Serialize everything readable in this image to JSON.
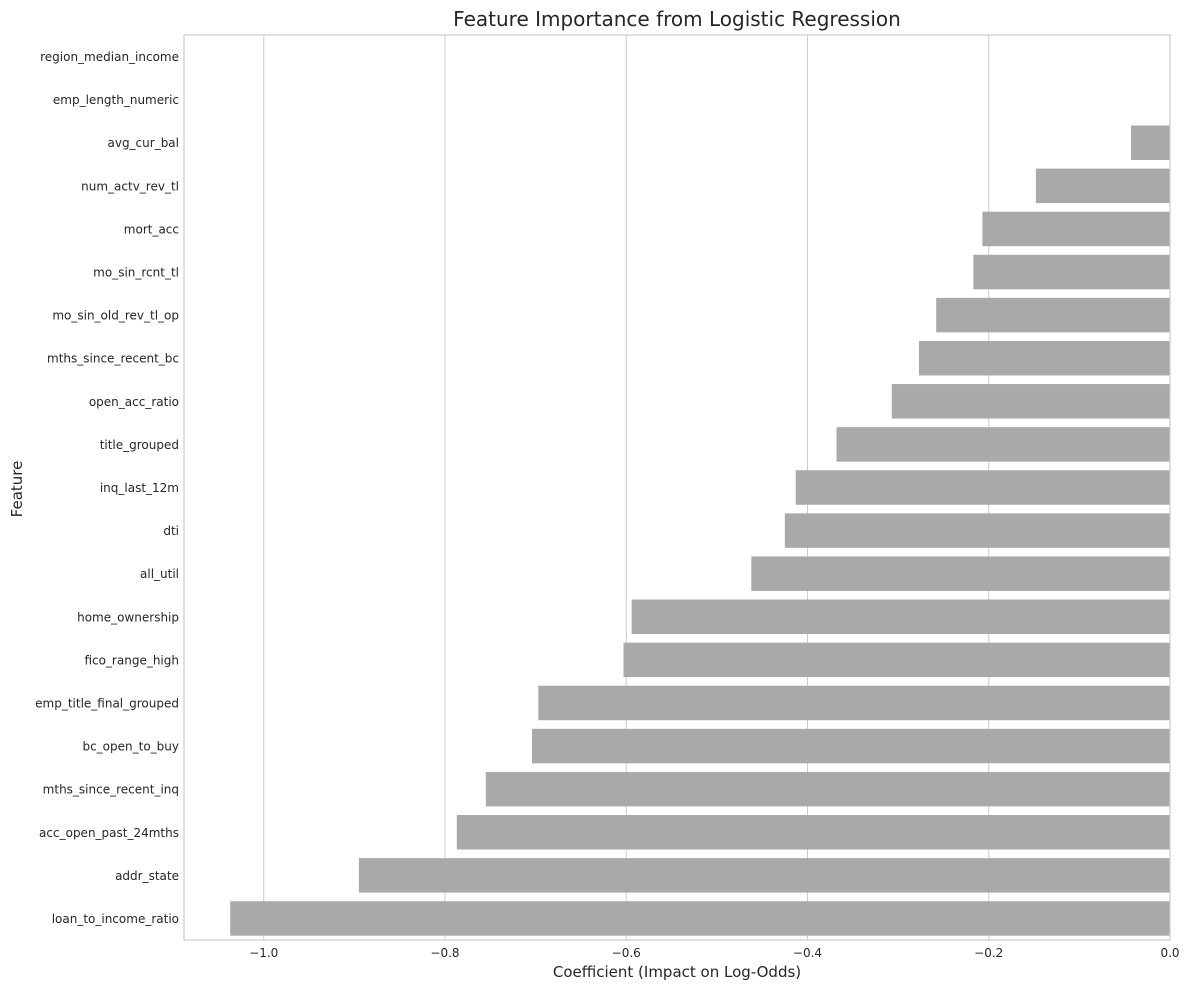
{
  "chart_data": {
    "type": "bar",
    "orientation": "horizontal",
    "title": "Feature Importance from Logistic Regression",
    "xlabel": "Coefficient (Impact on Log-Odds)",
    "ylabel": "Feature",
    "xlim": [
      -1.088,
      0.0
    ],
    "xticks": [
      -1.0,
      -0.8,
      -0.6,
      -0.4,
      -0.2,
      0.0
    ],
    "xtick_labels": [
      "−1.0",
      "−0.8",
      "−0.6",
      "−0.4",
      "−0.2",
      "0.0"
    ],
    "grid": "vertical",
    "bar_color": "#a9a9a9",
    "categories": [
      "region_median_income",
      "emp_length_numeric",
      "avg_cur_bal",
      "num_actv_rev_tl",
      "mort_acc",
      "mo_sin_rcnt_tl",
      "mo_sin_old_rev_tl_op",
      "mths_since_recent_bc",
      "open_acc_ratio",
      "title_grouped",
      "inq_last_12m",
      "dti",
      "all_util",
      "home_ownership",
      "fico_range_high",
      "emp_title_final_grouped",
      "bc_open_to_buy",
      "mths_since_recent_inq",
      "acc_open_past_24mths",
      "addr_state",
      "loan_to_income_ratio"
    ],
    "values": [
      0.0,
      0.0,
      -0.043,
      -0.148,
      -0.207,
      -0.217,
      -0.258,
      -0.277,
      -0.307,
      -0.368,
      -0.413,
      -0.425,
      -0.462,
      -0.594,
      -0.603,
      -0.697,
      -0.704,
      -0.755,
      -0.787,
      -0.895,
      -1.037
    ]
  }
}
